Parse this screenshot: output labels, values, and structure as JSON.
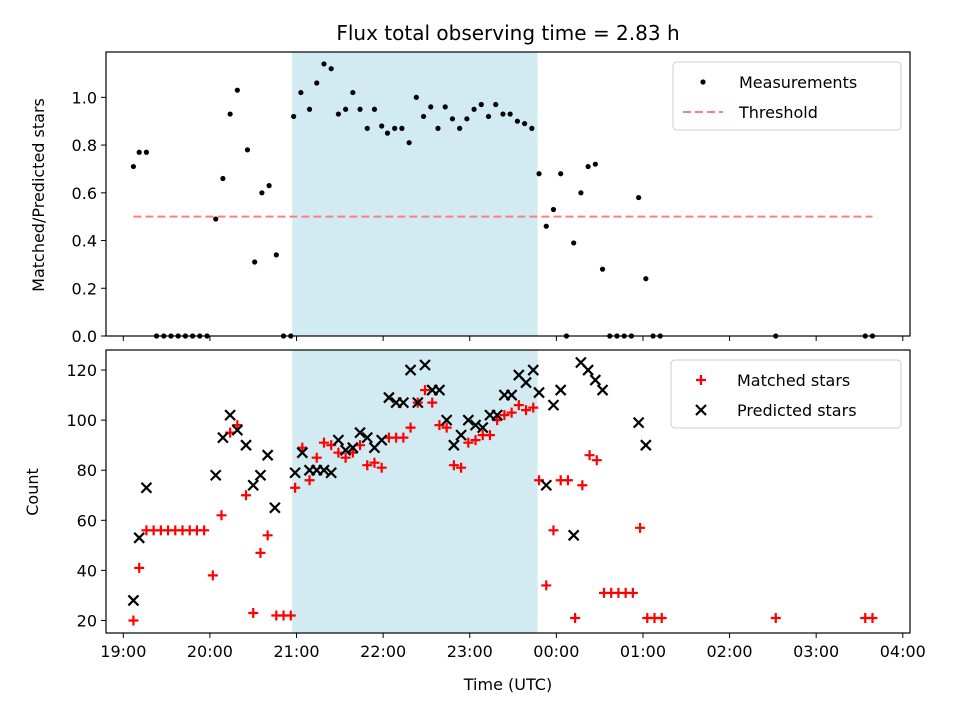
{
  "chart_data": [
    {
      "type": "scatter",
      "title": "Flux total observing time = 2.83 h",
      "xlabel": "",
      "ylabel": "Matched/Predicted stars",
      "x_ticks": [
        "19:00",
        "20:00",
        "21:00",
        "22:00",
        "23:00",
        "00:00",
        "01:00",
        "02:00",
        "03:00",
        "04:00"
      ],
      "x_ticklabels_visible": false,
      "xlim": [
        "18:48",
        "04:05"
      ],
      "ylim": [
        0,
        1.19
      ],
      "y_ticks": [
        "0.0",
        "0.2",
        "0.4",
        "0.6",
        "0.8",
        "1.0"
      ],
      "shaded_span": [
        "20:57",
        "23:47"
      ],
      "shaded_color": "#add8e6",
      "legend": {
        "placement": "top-right",
        "entries": [
          "Measurements",
          "Threshold"
        ]
      },
      "series": [
        {
          "name": "Measurements",
          "marker": "dot",
          "color": "#000000",
          "points": [
            [
              "19:07",
              0.71
            ],
            [
              "19:11",
              0.77
            ],
            [
              "19:16",
              0.77
            ],
            [
              "19:23",
              0.0
            ],
            [
              "19:28",
              0.0
            ],
            [
              "19:33",
              0.0
            ],
            [
              "19:38",
              0.0
            ],
            [
              "19:43",
              0.0
            ],
            [
              "19:48",
              0.0
            ],
            [
              "19:53",
              0.0
            ],
            [
              "19:58",
              0.0
            ],
            [
              "20:04",
              0.49
            ],
            [
              "20:09",
              0.66
            ],
            [
              "20:14",
              0.93
            ],
            [
              "20:19",
              1.03
            ],
            [
              "20:26",
              0.78
            ],
            [
              "20:31",
              0.31
            ],
            [
              "20:36",
              0.6
            ],
            [
              "20:41",
              0.63
            ],
            [
              "20:46",
              0.34
            ],
            [
              "20:51",
              0.0
            ],
            [
              "20:56",
              0.0
            ],
            [
              "20:58",
              0.92
            ],
            [
              "21:03",
              1.02
            ],
            [
              "21:09",
              0.95
            ],
            [
              "21:14",
              1.06
            ],
            [
              "21:19",
              1.14
            ],
            [
              "21:24",
              1.12
            ],
            [
              "21:29",
              0.93
            ],
            [
              "21:34",
              0.95
            ],
            [
              "21:39",
              1.02
            ],
            [
              "21:44",
              0.95
            ],
            [
              "21:49",
              0.87
            ],
            [
              "21:54",
              0.95
            ],
            [
              "21:59",
              0.88
            ],
            [
              "22:03",
              0.85
            ],
            [
              "22:08",
              0.87
            ],
            [
              "22:13",
              0.87
            ],
            [
              "22:18",
              0.81
            ],
            [
              "22:23",
              1.0
            ],
            [
              "22:28",
              0.92
            ],
            [
              "22:33",
              0.96
            ],
            [
              "22:38",
              0.87
            ],
            [
              "22:43",
              0.96
            ],
            [
              "22:48",
              0.91
            ],
            [
              "22:53",
              0.87
            ],
            [
              "22:58",
              0.91
            ],
            [
              "23:03",
              0.95
            ],
            [
              "23:08",
              0.97
            ],
            [
              "23:13",
              0.92
            ],
            [
              "23:18",
              0.97
            ],
            [
              "23:23",
              0.93
            ],
            [
              "23:28",
              0.93
            ],
            [
              "23:33",
              0.9
            ],
            [
              "23:38",
              0.89
            ],
            [
              "23:43",
              0.87
            ],
            [
              "23:48",
              0.68
            ],
            [
              "23:53",
              0.46
            ],
            [
              "23:58",
              0.53
            ],
            [
              "00:03",
              0.68
            ],
            [
              "00:07",
              0.0
            ],
            [
              "00:12",
              0.39
            ],
            [
              "00:17",
              0.6
            ],
            [
              "00:22",
              0.71
            ],
            [
              "00:27",
              0.72
            ],
            [
              "00:32",
              0.28
            ],
            [
              "00:37",
              0.0
            ],
            [
              "00:42",
              0.0
            ],
            [
              "00:47",
              0.0
            ],
            [
              "00:52",
              0.0
            ],
            [
              "00:57",
              0.58
            ],
            [
              "01:02",
              0.24
            ],
            [
              "01:07",
              0.0
            ],
            [
              "01:12",
              0.0
            ],
            [
              "02:32",
              0.0
            ],
            [
              "03:34",
              0.0
            ],
            [
              "03:39",
              0.0
            ]
          ]
        },
        {
          "name": "Threshold",
          "style": "dashed",
          "color": "#ff7f7f",
          "points": [
            [
              "19:07",
              0.5
            ],
            [
              "03:39",
              0.5
            ]
          ]
        }
      ]
    },
    {
      "type": "scatter",
      "title": "",
      "xlabel": "Time (UTC)",
      "ylabel": "Count",
      "x_ticks": [
        "19:00",
        "20:00",
        "21:00",
        "22:00",
        "23:00",
        "00:00",
        "01:00",
        "02:00",
        "03:00",
        "04:00"
      ],
      "xlim": [
        "18:48",
        "04:05"
      ],
      "ylim": [
        15,
        128
      ],
      "y_ticks": [
        "20",
        "40",
        "60",
        "80",
        "100",
        "120"
      ],
      "shaded_span": [
        "20:57",
        "23:47"
      ],
      "shaded_color": "#add8e6",
      "legend": {
        "placement": "top-right",
        "entries": [
          "Matched stars",
          "Predicted stars"
        ]
      },
      "series": [
        {
          "name": "Matched stars",
          "marker": "plus",
          "color": "#ff0000",
          "points": [
            [
              "19:07",
              20
            ],
            [
              "19:11",
              41
            ],
            [
              "19:16",
              56
            ],
            [
              "19:21",
              56
            ],
            [
              "19:26",
              56
            ],
            [
              "19:31",
              56
            ],
            [
              "19:36",
              56
            ],
            [
              "19:41",
              56
            ],
            [
              "19:46",
              56
            ],
            [
              "19:51",
              56
            ],
            [
              "19:56",
              56
            ],
            [
              "20:02",
              38
            ],
            [
              "20:08",
              62
            ],
            [
              "20:14",
              95
            ],
            [
              "20:19",
              98
            ],
            [
              "20:25",
              70
            ],
            [
              "20:30",
              23
            ],
            [
              "20:35",
              47
            ],
            [
              "20:40",
              54
            ],
            [
              "20:46",
              22
            ],
            [
              "20:51",
              22
            ],
            [
              "20:56",
              22
            ],
            [
              "20:59",
              73
            ],
            [
              "21:04",
              89
            ],
            [
              "21:09",
              76
            ],
            [
              "21:14",
              85
            ],
            [
              "21:19",
              91
            ],
            [
              "21:24",
              90
            ],
            [
              "21:29",
              87
            ],
            [
              "21:34",
              85
            ],
            [
              "21:39",
              87
            ],
            [
              "21:44",
              90
            ],
            [
              "21:49",
              82
            ],
            [
              "21:54",
              83
            ],
            [
              "21:59",
              81
            ],
            [
              "22:04",
              93
            ],
            [
              "22:09",
              93
            ],
            [
              "22:14",
              93
            ],
            [
              "22:19",
              97
            ],
            [
              "22:24",
              107
            ],
            [
              "22:29",
              112
            ],
            [
              "22:34",
              107
            ],
            [
              "22:39",
              98
            ],
            [
              "22:44",
              97
            ],
            [
              "22:49",
              82
            ],
            [
              "22:54",
              81
            ],
            [
              "22:59",
              91
            ],
            [
              "23:04",
              92
            ],
            [
              "23:09",
              94
            ],
            [
              "23:14",
              94
            ],
            [
              "23:19",
              100
            ],
            [
              "23:24",
              102
            ],
            [
              "23:29",
              103
            ],
            [
              "23:34",
              106
            ],
            [
              "23:39",
              104
            ],
            [
              "23:44",
              105
            ],
            [
              "23:48",
              76
            ],
            [
              "23:53",
              34
            ],
            [
              "23:58",
              56
            ],
            [
              "00:03",
              76
            ],
            [
              "00:08",
              76
            ],
            [
              "00:13",
              21
            ],
            [
              "00:18",
              74
            ],
            [
              "00:23",
              86
            ],
            [
              "00:28",
              84
            ],
            [
              "00:33",
              31
            ],
            [
              "00:38",
              31
            ],
            [
              "00:43",
              31
            ],
            [
              "00:48",
              31
            ],
            [
              "00:53",
              31
            ],
            [
              "00:58",
              57
            ],
            [
              "01:03",
              21
            ],
            [
              "01:08",
              21
            ],
            [
              "01:13",
              21
            ],
            [
              "02:32",
              21
            ],
            [
              "03:34",
              21
            ],
            [
              "03:39",
              21
            ]
          ]
        },
        {
          "name": "Predicted stars",
          "marker": "x",
          "color": "#000000",
          "points": [
            [
              "19:07",
              28
            ],
            [
              "19:11",
              53
            ],
            [
              "19:16",
              73
            ],
            [
              "20:04",
              78
            ],
            [
              "20:09",
              93
            ],
            [
              "20:14",
              102
            ],
            [
              "20:19",
              96
            ],
            [
              "20:25",
              90
            ],
            [
              "20:30",
              74
            ],
            [
              "20:35",
              78
            ],
            [
              "20:40",
              86
            ],
            [
              "20:45",
              65
            ],
            [
              "20:59",
              79
            ],
            [
              "21:04",
              87
            ],
            [
              "21:09",
              80
            ],
            [
              "21:14",
              80
            ],
            [
              "21:19",
              80
            ],
            [
              "21:24",
              79
            ],
            [
              "21:29",
              92
            ],
            [
              "21:34",
              88
            ],
            [
              "21:39",
              89
            ],
            [
              "21:44",
              95
            ],
            [
              "21:49",
              93
            ],
            [
              "21:54",
              89
            ],
            [
              "21:59",
              92
            ],
            [
              "22:04",
              109
            ],
            [
              "22:09",
              107
            ],
            [
              "22:14",
              107
            ],
            [
              "22:19",
              120
            ],
            [
              "22:24",
              107
            ],
            [
              "22:29",
              122
            ],
            [
              "22:34",
              112
            ],
            [
              "22:39",
              112
            ],
            [
              "22:44",
              100
            ],
            [
              "22:49",
              90
            ],
            [
              "22:54",
              94
            ],
            [
              "22:59",
              100
            ],
            [
              "23:04",
              98
            ],
            [
              "23:09",
              97
            ],
            [
              "23:14",
              102
            ],
            [
              "23:19",
              102
            ],
            [
              "23:24",
              110
            ],
            [
              "23:29",
              110
            ],
            [
              "23:34",
              118
            ],
            [
              "23:39",
              115
            ],
            [
              "23:44",
              120
            ],
            [
              "23:48",
              111
            ],
            [
              "23:53",
              74
            ],
            [
              "23:58",
              106
            ],
            [
              "00:03",
              112
            ],
            [
              "00:12",
              54
            ],
            [
              "00:17",
              123
            ],
            [
              "00:22",
              120
            ],
            [
              "00:27",
              116
            ],
            [
              "00:32",
              112
            ],
            [
              "00:57",
              99
            ],
            [
              "01:02",
              90
            ]
          ]
        }
      ]
    }
  ]
}
